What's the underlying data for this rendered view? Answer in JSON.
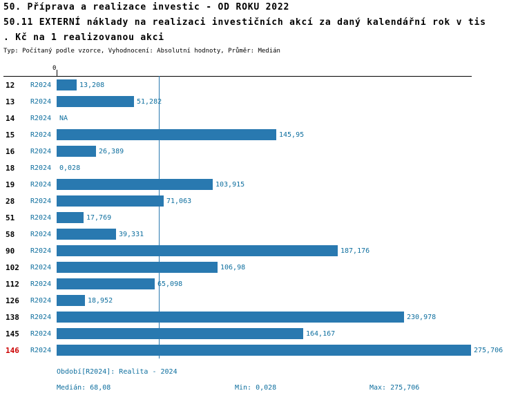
{
  "title": {
    "line1": "50. Příprava a realizace investic - OD ROKU 2022",
    "line2": "50.11 EXTERNÍ náklady na realizaci investičních akcí za daný kalendářní rok v tis",
    "line3": ". Kč na 1 realizovanou akci",
    "subtitle": "Typ: Počítaný podle vzorce, Vyhodnocení: Absolutní hodnoty, Průměr: Medián"
  },
  "colors": {
    "bar": "#2979b0",
    "accent_text": "#0d6e9e",
    "highlight_id": "#cc0000"
  },
  "chart_data": {
    "type": "bar",
    "orientation": "horizontal",
    "series_name": "R2024",
    "zero_label": "0",
    "xmin": 0,
    "xmax": 275.706,
    "median": 68.08,
    "grid": false,
    "categories": [
      "12",
      "13",
      "14",
      "15",
      "16",
      "18",
      "19",
      "28",
      "51",
      "58",
      "90",
      "102",
      "112",
      "126",
      "138",
      "145",
      "146"
    ],
    "values": [
      13.208,
      51.282,
      null,
      145.95,
      26.389,
      0.028,
      103.915,
      71.063,
      17.769,
      39.331,
      187.176,
      106.98,
      65.098,
      18.952,
      230.978,
      164.167,
      275.706
    ],
    "rows": [
      {
        "id": "12",
        "period": "R2024",
        "value": 13.208,
        "label": "13,208",
        "highlight": false
      },
      {
        "id": "13",
        "period": "R2024",
        "value": 51.282,
        "label": "51,282",
        "highlight": false
      },
      {
        "id": "14",
        "period": "R2024",
        "value": null,
        "label": "NA",
        "highlight": false
      },
      {
        "id": "15",
        "period": "R2024",
        "value": 145.95,
        "label": "145,95",
        "highlight": false
      },
      {
        "id": "16",
        "period": "R2024",
        "value": 26.389,
        "label": "26,389",
        "highlight": false
      },
      {
        "id": "18",
        "period": "R2024",
        "value": 0.028,
        "label": "0,028",
        "highlight": false
      },
      {
        "id": "19",
        "period": "R2024",
        "value": 103.915,
        "label": "103,915",
        "highlight": false
      },
      {
        "id": "28",
        "period": "R2024",
        "value": 71.063,
        "label": "71,063",
        "highlight": false
      },
      {
        "id": "51",
        "period": "R2024",
        "value": 17.769,
        "label": "17,769",
        "highlight": false
      },
      {
        "id": "58",
        "period": "R2024",
        "value": 39.331,
        "label": "39,331",
        "highlight": false
      },
      {
        "id": "90",
        "period": "R2024",
        "value": 187.176,
        "label": "187,176",
        "highlight": false
      },
      {
        "id": "102",
        "period": "R2024",
        "value": 106.98,
        "label": "106,98",
        "highlight": false
      },
      {
        "id": "112",
        "period": "R2024",
        "value": 65.098,
        "label": "65,098",
        "highlight": false
      },
      {
        "id": "126",
        "period": "R2024",
        "value": 18.952,
        "label": "18,952",
        "highlight": false
      },
      {
        "id": "138",
        "period": "R2024",
        "value": 230.978,
        "label": "230,978",
        "highlight": false
      },
      {
        "id": "145",
        "period": "R2024",
        "value": 164.167,
        "label": "164,167",
        "highlight": false
      },
      {
        "id": "146",
        "period": "R2024",
        "value": 275.706,
        "label": "275,706",
        "highlight": true
      }
    ]
  },
  "footer": {
    "period_info": "Období[R2024]: Realita - 2024",
    "median": "Medián: 68,08",
    "min": "Min: 0,028",
    "max": "Max: 275,706"
  }
}
